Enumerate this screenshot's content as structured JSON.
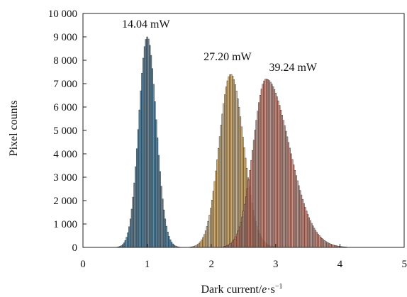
{
  "chart_data": {
    "type": "bar",
    "xlabel_main": "Dark current/",
    "xlabel_italic": "e",
    "xlabel_unit": "·s",
    "xlabel_sup": "−1",
    "ylabel": "Pixel counts",
    "xlim": [
      0,
      5
    ],
    "ylim": [
      0,
      10000
    ],
    "x_ticks": [
      0,
      1,
      2,
      3,
      4,
      5
    ],
    "x_tick_labels": [
      "0",
      "1",
      "2",
      "3",
      "4",
      "5"
    ],
    "y_ticks": [
      0,
      1000,
      2000,
      3000,
      4000,
      5000,
      6000,
      7000,
      8000,
      9000,
      10000
    ],
    "y_tick_labels": [
      "0",
      "1 000",
      "2 000",
      "3 000",
      "4 000",
      "5 000",
      "6 000",
      "7 000",
      "8 000",
      "9 000",
      "10 000"
    ],
    "grid": false,
    "bin_width": 0.02,
    "series": [
      {
        "name": "14.04 mW",
        "color": "#3e6f8e",
        "peak_x": 1.0,
        "peak_y": 9000,
        "sigma_left": 0.13,
        "sigma_right": 0.14,
        "x_min": 0.5,
        "x_max": 1.6
      },
      {
        "name": "27.20 mW",
        "color": "#c9a262",
        "peak_x": 2.3,
        "peak_y": 7400,
        "sigma_left": 0.18,
        "sigma_right": 0.2,
        "x_min": 1.65,
        "x_max": 3.1
      },
      {
        "name": "39.24 mW",
        "color": "#c17d6e",
        "peak_x": 2.85,
        "peak_y": 7200,
        "sigma_left": 0.2,
        "sigma_right": 0.36,
        "x_min": 2.2,
        "x_max": 4.2
      }
    ],
    "annotations": [
      {
        "text": "14.04 mW",
        "x": 0.98,
        "y": 9400
      },
      {
        "text": "27.20 mW",
        "x": 2.25,
        "y": 8000
      },
      {
        "text": "39.24 mW",
        "x": 3.27,
        "y": 7550
      }
    ]
  }
}
